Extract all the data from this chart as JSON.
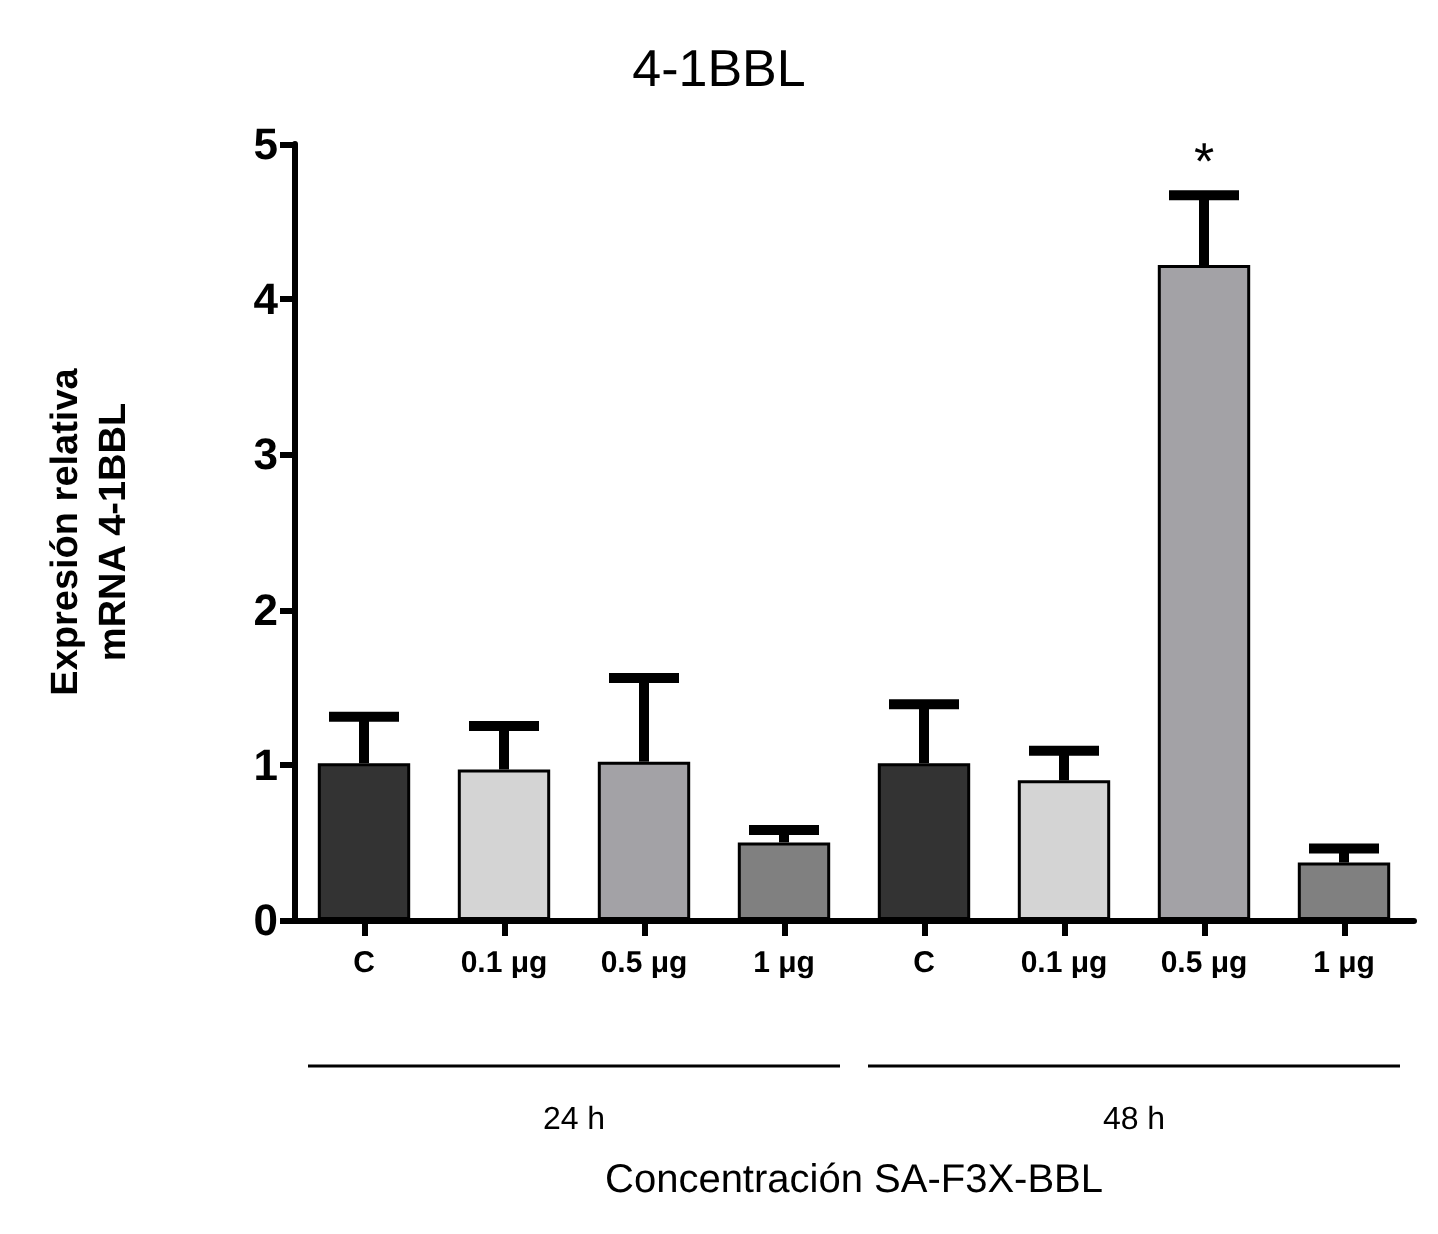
{
  "chart_data": {
    "type": "bar",
    "title": "4-1BBL",
    "ylabel": "Expresión relativa\nmRNA 4-1BBL",
    "xlabel": "Concentración SA-F3X-BBL",
    "categories": [
      "C",
      "0.1 μg",
      "0.5 μg",
      "1 μg",
      "C",
      "0.1 μg",
      "0.5 μg",
      "1 μg"
    ],
    "values": [
      1.01,
      0.97,
      1.02,
      0.5,
      1.01,
      0.9,
      4.22,
      0.37
    ],
    "colors": [
      "#333333",
      "#d4d4d4",
      "#a3a2a6",
      "#808080",
      "#333333",
      "#d4d4d4",
      "#a3a2a6",
      "#808080"
    ],
    "errors": [
      [
        1.01,
        1.31
      ],
      [
        0.97,
        1.25
      ],
      [
        1.02,
        1.56
      ],
      [
        0.5,
        0.58
      ],
      [
        1.01,
        1.39
      ],
      [
        0.9,
        1.09
      ],
      [
        4.22,
        4.67
      ],
      [
        0.37,
        0.46
      ]
    ],
    "value_labels": [
      null,
      null,
      null,
      null,
      null,
      null,
      "*",
      null
    ],
    "ylim": [
      0,
      5
    ],
    "yticks": [
      0,
      1,
      2,
      3,
      4,
      5
    ],
    "grid": false,
    "annotations": [
      "24 h",
      "48 h"
    ]
  }
}
